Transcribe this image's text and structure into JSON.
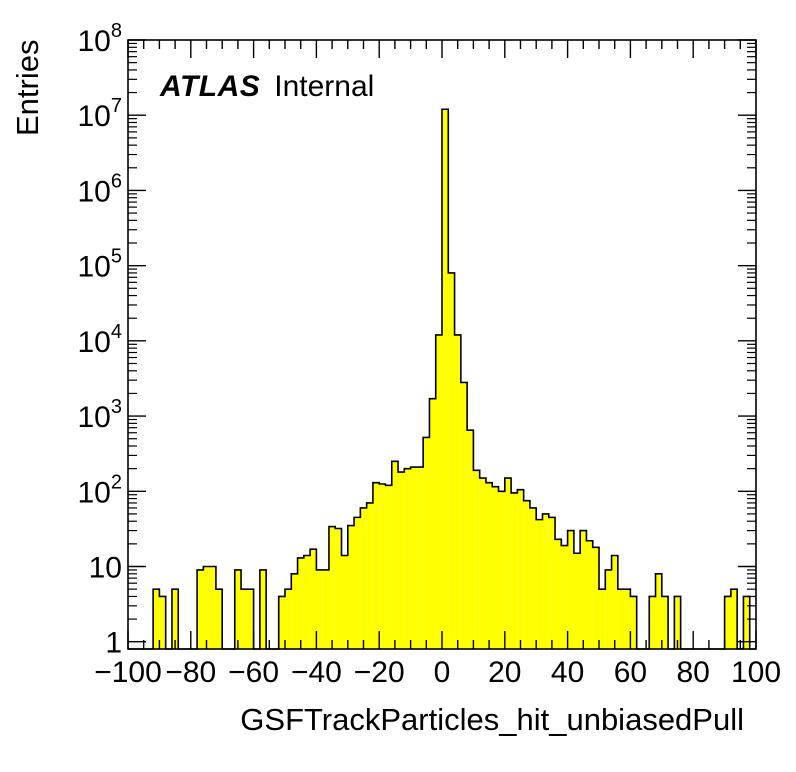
{
  "chart_data": {
    "type": "histogram",
    "title": "",
    "xlabel": "GSFTrackParticles_hit_unbiasedPull",
    "ylabel": "Entries",
    "xlim": [
      -100,
      100
    ],
    "ylim": [
      0.8,
      100000000
    ],
    "yscale": "log",
    "fill_color": "#ffff00",
    "line_color": "#000000",
    "label": {
      "experiment": "ATLAS",
      "status": "Internal"
    },
    "xticks": [
      -100,
      -80,
      -60,
      -40,
      -20,
      0,
      20,
      40,
      60,
      80,
      100
    ],
    "xtick_labels": [
      "−100",
      "−80",
      "−60",
      "−40",
      "−20",
      "0",
      "20",
      "40",
      "60",
      "80",
      "100"
    ],
    "yticks": [
      1,
      10,
      100,
      1000,
      10000,
      100000,
      1000000,
      10000000,
      100000000
    ],
    "ytick_labels": [
      {
        "base": "1",
        "exp": ""
      },
      {
        "base": "10",
        "exp": ""
      },
      {
        "base": "10",
        "exp": "2"
      },
      {
        "base": "10",
        "exp": "3"
      },
      {
        "base": "10",
        "exp": "4"
      },
      {
        "base": "10",
        "exp": "5"
      },
      {
        "base": "10",
        "exp": "6"
      },
      {
        "base": "10",
        "exp": "7"
      },
      {
        "base": "10",
        "exp": "8"
      }
    ],
    "bin_width": 2,
    "bin_edges_range": [
      -100,
      100
    ],
    "values": [
      0,
      0,
      0,
      0,
      5,
      4,
      0,
      5,
      0,
      0,
      0,
      9,
      10,
      10,
      5,
      0,
      0,
      9,
      5,
      5,
      0,
      9,
      0,
      0,
      4,
      5,
      8,
      13,
      14,
      17,
      9,
      9,
      34,
      32,
      14,
      35,
      45,
      60,
      70,
      130,
      125,
      120,
      250,
      180,
      200,
      210,
      210,
      520,
      1700,
      12000,
      12000000,
      80000,
      12000,
      2800,
      650,
      190,
      150,
      130,
      115,
      100,
      150,
      95,
      105,
      75,
      60,
      42,
      50,
      45,
      23,
      19,
      30,
      15,
      30,
      22,
      18,
      5,
      9,
      14,
      5,
      5,
      4,
      0,
      0,
      4,
      8,
      4,
      0,
      4,
      0,
      0,
      0,
      0,
      0,
      0,
      0,
      4,
      5,
      0,
      4,
      0
    ]
  }
}
